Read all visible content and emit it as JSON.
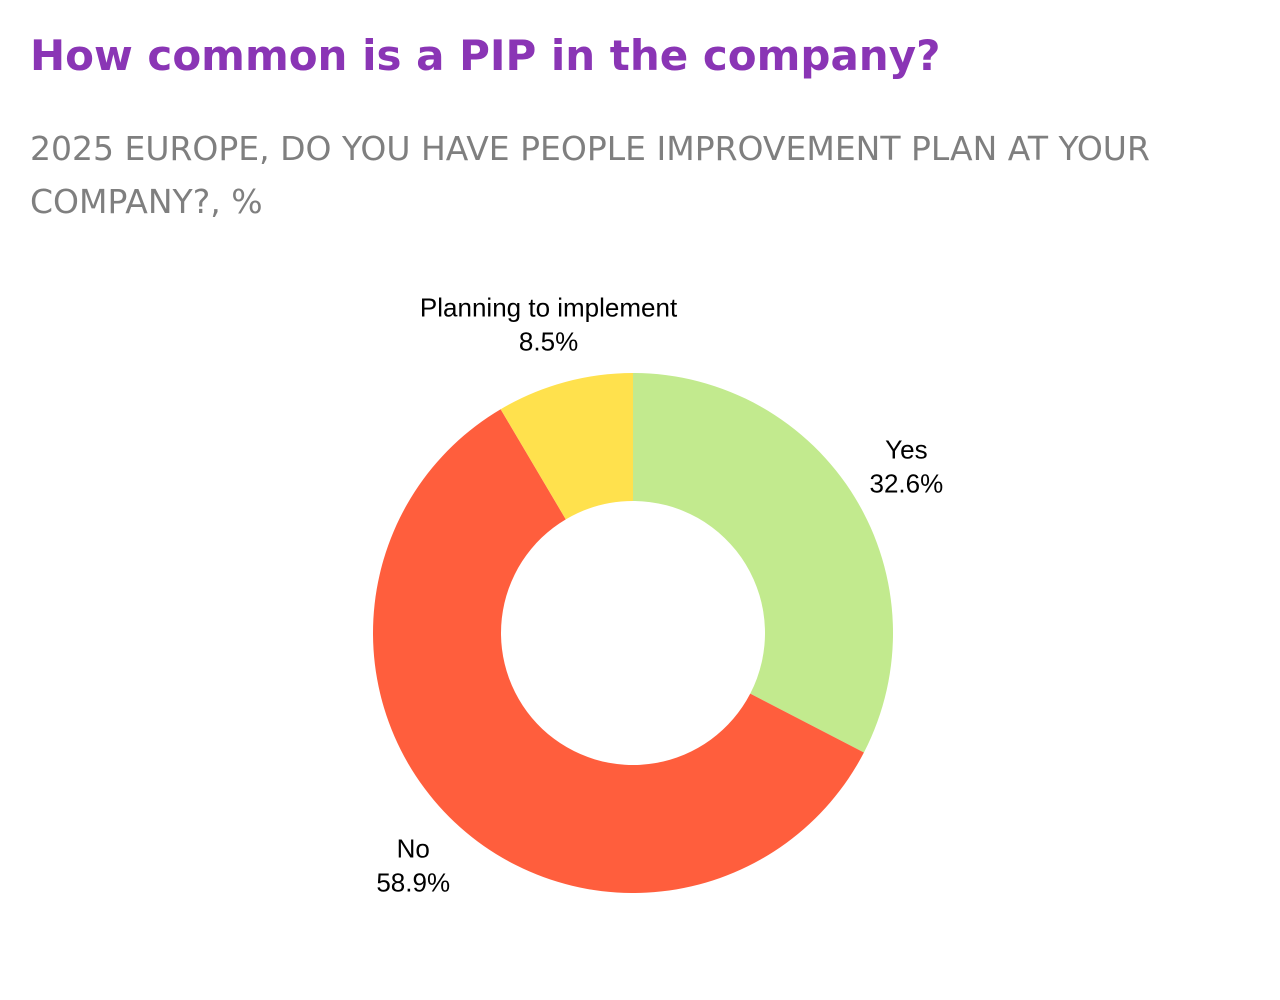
{
  "chart_data": {
    "type": "pie",
    "variant": "donut",
    "title": "How common is a PIP in the company?",
    "subtitle": "2025 EUROPE, DO YOU HAVE PEOPLE IMPROVEMENT PLAN AT YOUR COMPANY?, %",
    "unit": "%",
    "slices": [
      {
        "label": "Yes",
        "value": 32.6,
        "value_label": "32.6%",
        "color": "#c2ea8e"
      },
      {
        "label": "No",
        "value": 58.9,
        "value_label": "58.9%",
        "color": "#ff5e3d"
      },
      {
        "label": "Planning to implement",
        "value": 8.5,
        "value_label": "8.5%",
        "color": "#ffe14d"
      }
    ],
    "start": "12 o'clock",
    "direction": "clockwise",
    "legend": "none",
    "labels": "outside"
  },
  "colors": {
    "title": "#8a35b5",
    "subtitle": "#7f7f7f"
  }
}
